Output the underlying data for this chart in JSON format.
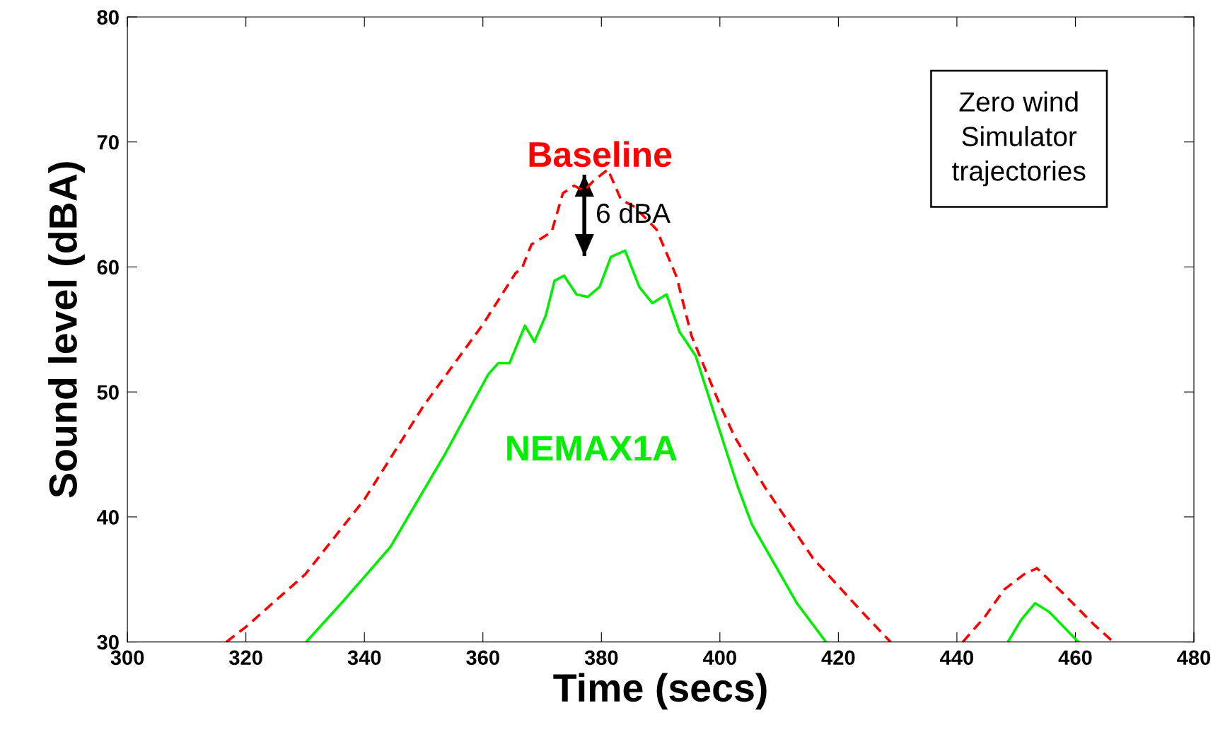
{
  "chart_data": {
    "type": "line",
    "xlabel": "Time (secs)",
    "ylabel": "Sound level (dBA)",
    "xlim": [
      300,
      480
    ],
    "ylim": [
      30,
      80
    ],
    "xticks": [
      300,
      320,
      340,
      360,
      380,
      400,
      420,
      440,
      460,
      480
    ],
    "yticks": [
      30,
      40,
      50,
      60,
      70,
      80
    ],
    "grid": false,
    "legend": false,
    "series": [
      {
        "name": "Baseline",
        "color": "#ff0000",
        "line_style": "dashed",
        "x": [
          316.7,
          320,
          330,
          340,
          350,
          360,
          365.5,
          366.6,
          368.2,
          371.6,
          373.5,
          375.4,
          377.1,
          378.7,
          381.1,
          383.3,
          385.6,
          389.3,
          392.7,
          395.2,
          399.8,
          402.5,
          407.7,
          415.7,
          423.6,
          428.8,
          435,
          441,
          444.7,
          448,
          451.3,
          453.5,
          457.9,
          463.1,
          466.4
        ],
        "values": [
          30,
          31.2,
          35.4,
          41.4,
          48.9,
          55.4,
          59.5,
          59.9,
          61.8,
          62.8,
          65.9,
          66.5,
          66.1,
          66.9,
          67.8,
          65.4,
          64.8,
          63,
          59.2,
          54.5,
          49.2,
          46.4,
          42.3,
          36.7,
          32.6,
          30,
          null,
          30,
          32,
          34.2,
          35.4,
          35.9,
          33.9,
          31.4,
          30
        ]
      },
      {
        "name": "NEMAX1A",
        "color": "#00ee00",
        "line_style": "solid",
        "x": [
          330.2,
          336.5,
          344.4,
          353.7,
          360.9,
          362.6,
          364.5,
          367.1,
          368.7,
          370.6,
          372.1,
          373.7,
          375.8,
          377.7,
          379.7,
          381.6,
          384,
          386.4,
          388.6,
          391,
          393.2,
          395.9,
          403.1,
          405.4,
          413,
          417.9,
          430,
          448.6,
          450.9,
          453.2,
          455.6,
          460.5
        ],
        "values": [
          30,
          33.3,
          37.6,
          45.1,
          51.4,
          52.3,
          52.3,
          55.3,
          54,
          56.1,
          58.9,
          59.3,
          57.8,
          57.6,
          58.4,
          60.8,
          61.3,
          58.4,
          57.1,
          57.8,
          54.8,
          52.9,
          42.3,
          39.4,
          33.1,
          30,
          null,
          30,
          31.8,
          33.1,
          32.4,
          30
        ]
      }
    ],
    "annotations": [
      "6 dBA",
      "Zero wind\nSimulator\ntrajectories"
    ]
  }
}
